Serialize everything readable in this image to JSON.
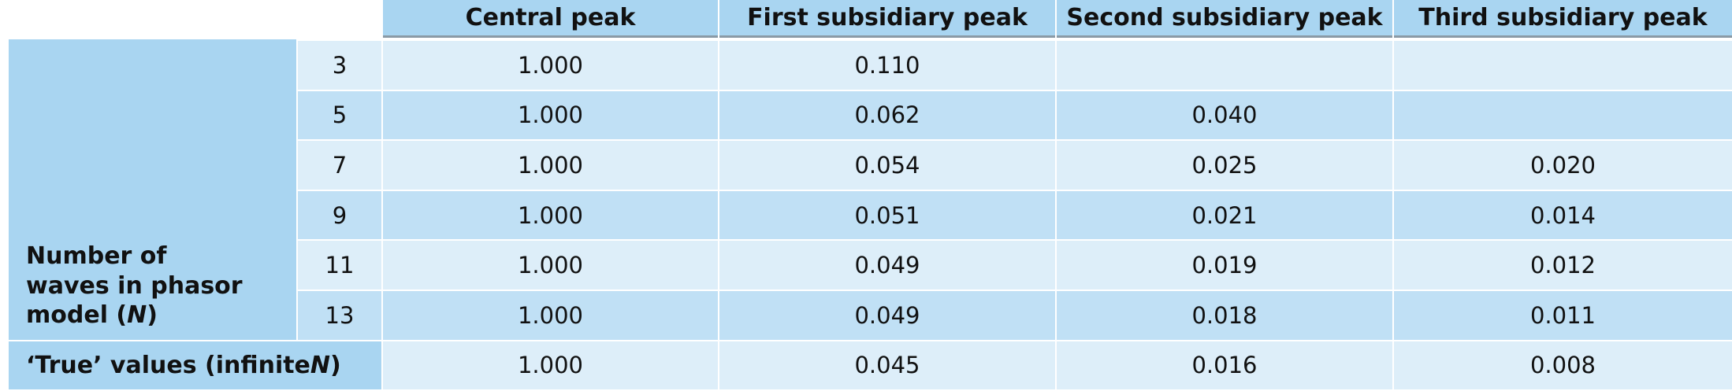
{
  "table": {
    "columns": [
      "Central peak",
      "First subsidiary peak",
      "Second subsidiary peak",
      "Third subsidiary peak"
    ],
    "row_group_label": {
      "before": "Number of waves in phasor model (",
      "italic": "N",
      "after": ")"
    },
    "rows": [
      {
        "n": 3,
        "values": [
          "1.000",
          "0.110",
          null,
          null
        ]
      },
      {
        "n": 5,
        "values": [
          "1.000",
          "0.062",
          "0.040",
          null
        ]
      },
      {
        "n": 7,
        "values": [
          "1.000",
          "0.054",
          "0.025",
          "0.020"
        ]
      },
      {
        "n": 9,
        "values": [
          "1.000",
          "0.051",
          "0.021",
          "0.014"
        ]
      },
      {
        "n": 11,
        "values": [
          "1.000",
          "0.049",
          "0.019",
          "0.012"
        ]
      },
      {
        "n": 13,
        "values": [
          "1.000",
          "0.049",
          "0.018",
          "0.011"
        ]
      }
    ],
    "true_row": {
      "label": {
        "before": "‘True’ values (infinite ",
        "italic": "N",
        "after": ")"
      },
      "values": [
        "1.000",
        "0.045",
        "0.016",
        "0.008"
      ]
    }
  }
}
